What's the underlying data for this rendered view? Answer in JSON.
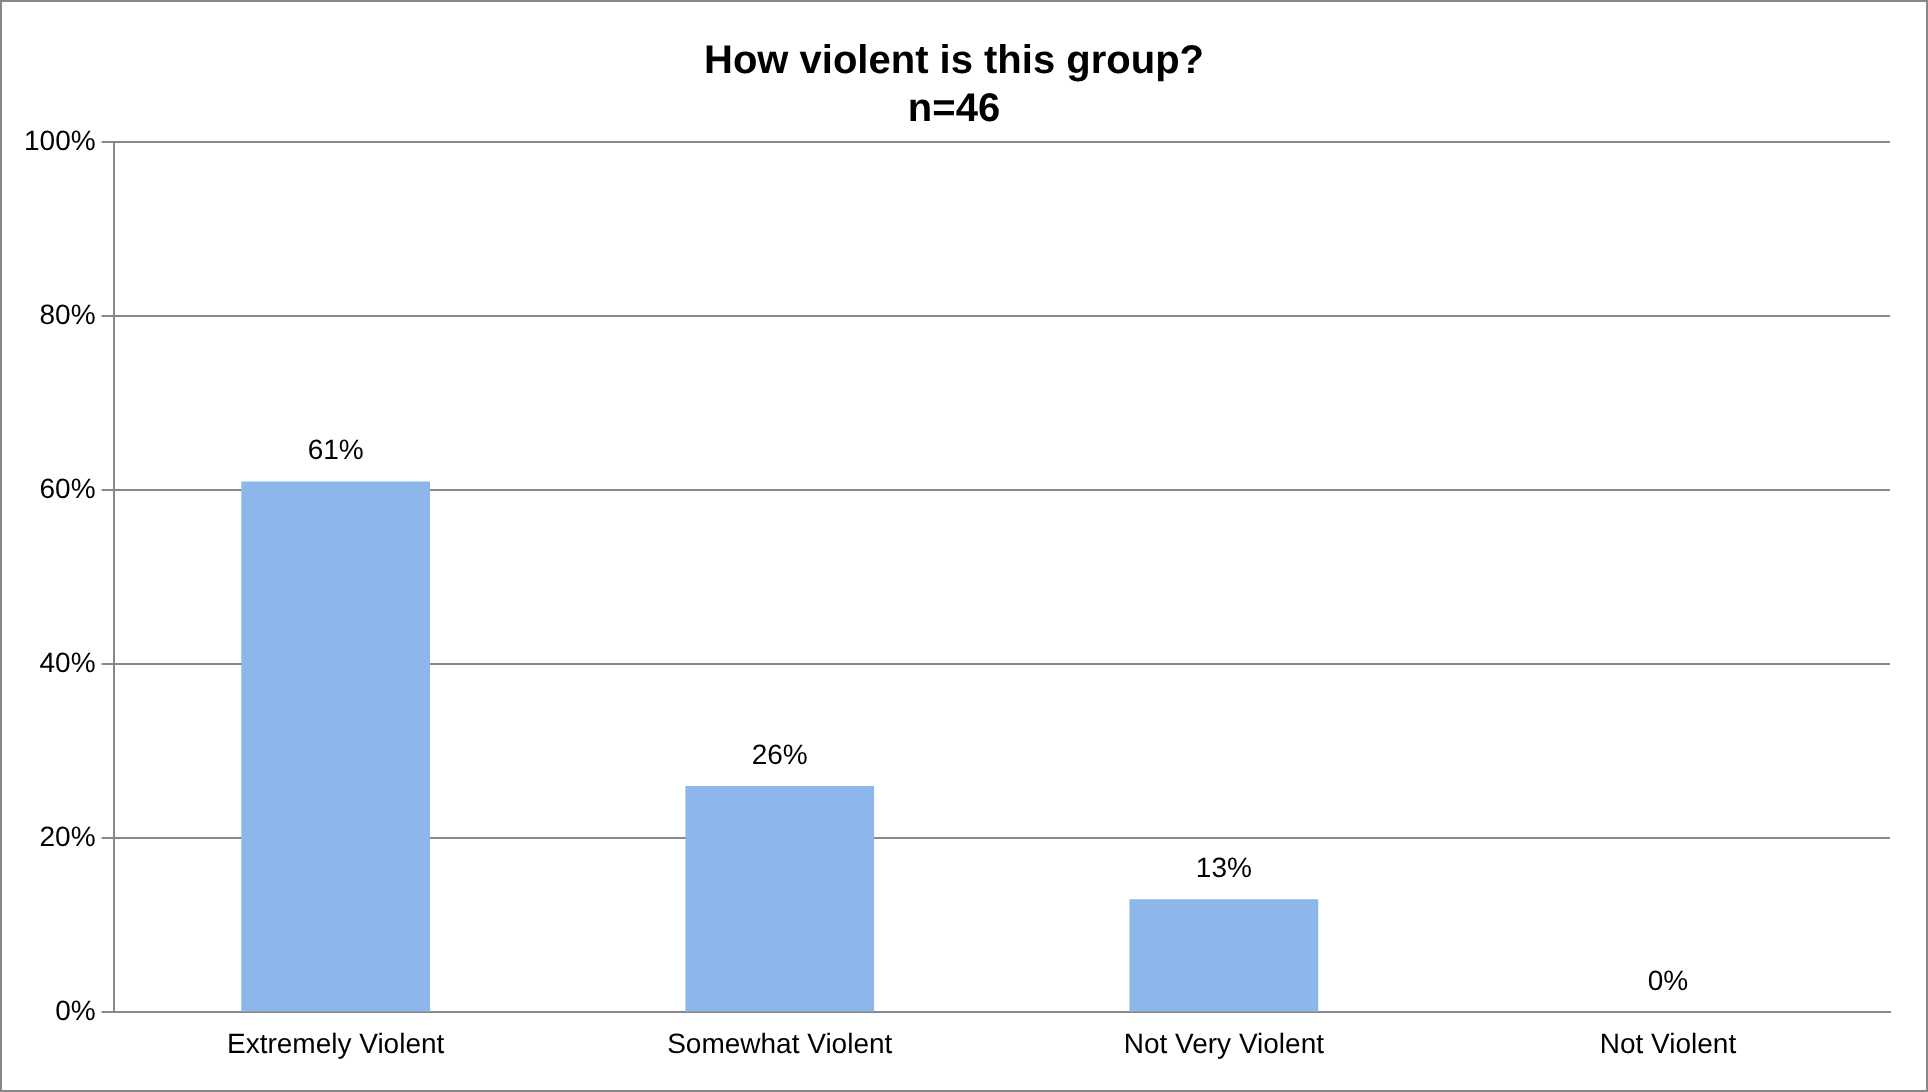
{
  "chart_data": {
    "type": "bar",
    "title": [
      "How violent is this group?",
      "n=46"
    ],
    "categories": [
      "Extremely Violent",
      "Somewhat Violent",
      "Not Very Violent",
      "Not Violent"
    ],
    "values": [
      61,
      26,
      13,
      0
    ],
    "color": "#8db7ea",
    "value_labels": [
      "61%",
      "26%",
      "13%",
      "0%"
    ],
    "ylim": [
      0,
      100
    ],
    "yticks": [
      {
        "value": 0,
        "label": "0%"
      },
      {
        "value": 20,
        "label": "20%"
      },
      {
        "value": 40,
        "label": "40%"
      },
      {
        "value": 60,
        "label": "60%"
      },
      {
        "value": 80,
        "label": "80%"
      },
      {
        "value": 100,
        "label": "100%"
      }
    ],
    "grid": "y",
    "legend": false
  }
}
